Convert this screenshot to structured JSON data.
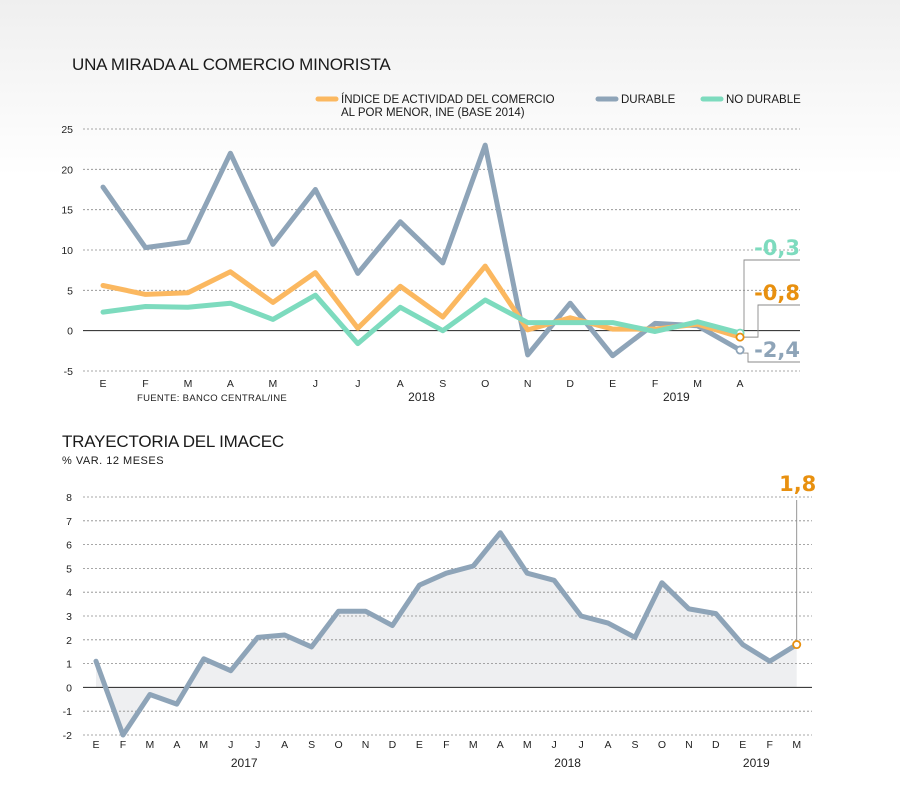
{
  "chart_data": [
    {
      "type": "line",
      "title": "UNA MIRADA AL COMERCIO MINORISTA",
      "source": "FUENTE: BANCO CENTRAL/INE",
      "categories": [
        "E",
        "F",
        "M",
        "A",
        "M",
        "J",
        "J",
        "A",
        "S",
        "O",
        "N",
        "D",
        "E",
        "F",
        "M",
        "A"
      ],
      "year_labels": [
        {
          "label": "2018",
          "index": 7.5
        },
        {
          "label": "2019",
          "index": 13.5
        }
      ],
      "ylim": [
        -5,
        25
      ],
      "yticks": [
        -5,
        0,
        5,
        10,
        15,
        20,
        25
      ],
      "grid": true,
      "legend_position": "top",
      "series": [
        {
          "name_lines": [
            "ÍNDICE DE ACTIVIDAD DEL COMERCIO",
            "AL POR MENOR, INE (BASE 2014)"
          ],
          "color": "#fbb860",
          "values": [
            5.6,
            4.5,
            4.7,
            7.3,
            3.5,
            7.2,
            0.3,
            5.5,
            1.7,
            8.0,
            0.1,
            1.6,
            0.2,
            0.2,
            0.8,
            -0.8
          ],
          "end_label": "-0,8",
          "end_label_color": "#e8900f"
        },
        {
          "name_lines": [
            "DURABLE"
          ],
          "color": "#8ea4b8",
          "values": [
            17.8,
            10.3,
            11.0,
            22.0,
            10.7,
            17.5,
            7.1,
            13.5,
            8.4,
            23.0,
            -3.0,
            3.4,
            -3.1,
            0.9,
            0.6,
            -2.4
          ],
          "end_label": "-2,4",
          "end_label_color": "#8ea4b8"
        },
        {
          "name_lines": [
            "NO DURABLE"
          ],
          "color": "#7ddbbe",
          "values": [
            2.3,
            3.0,
            2.9,
            3.4,
            1.4,
            4.4,
            -1.6,
            2.9,
            0.0,
            3.8,
            1.0,
            1.0,
            1.0,
            -0.1,
            1.1,
            -0.3
          ],
          "end_label": "-0,3",
          "end_label_color": "#7ddbbe"
        }
      ]
    },
    {
      "type": "area",
      "title": "TRAYECTORIA DEL IMACEC",
      "subtitle": "% VAR. 12 MESES",
      "categories": [
        "E",
        "F",
        "M",
        "A",
        "M",
        "J",
        "J",
        "A",
        "S",
        "O",
        "N",
        "D",
        "E",
        "F",
        "M",
        "A",
        "M",
        "J",
        "J",
        "A",
        "S",
        "O",
        "N",
        "D",
        "E",
        "F",
        "M"
      ],
      "year_labels": [
        {
          "label": "2017",
          "index": 5.5
        },
        {
          "label": "2018",
          "index": 17.5
        },
        {
          "label": "2019",
          "index": 24.5
        }
      ],
      "ylim": [
        -2,
        8
      ],
      "yticks": [
        -2,
        -1,
        0,
        1,
        2,
        3,
        4,
        5,
        6,
        7,
        8
      ],
      "grid": true,
      "series": [
        {
          "color": "#8ea4b8",
          "fill": "#eeeff1",
          "values": [
            1.1,
            -2.0,
            -0.3,
            -0.7,
            1.2,
            0.7,
            2.1,
            2.2,
            1.7,
            3.2,
            3.2,
            2.6,
            4.3,
            4.8,
            5.1,
            6.5,
            4.8,
            4.5,
            3.0,
            2.7,
            2.1,
            4.4,
            3.3,
            3.1,
            1.8,
            1.1,
            1.8
          ],
          "end_label": "1,8",
          "end_label_color": "#e8900f"
        }
      ]
    }
  ]
}
